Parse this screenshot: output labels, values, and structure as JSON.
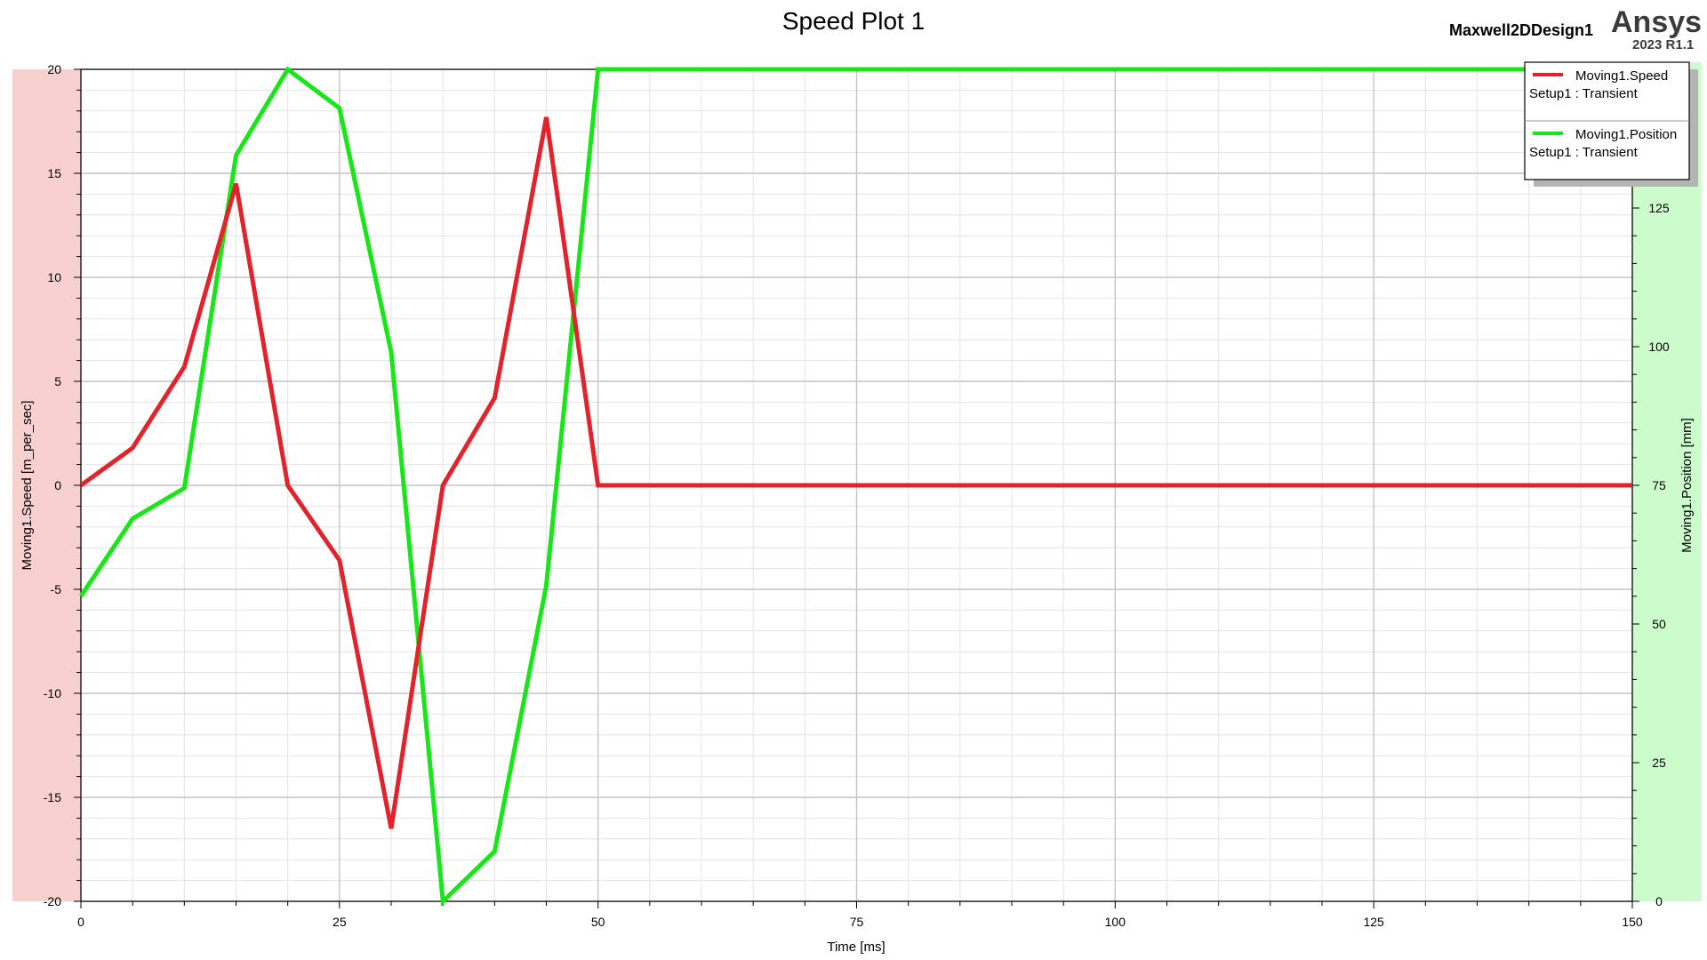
{
  "header": {
    "title": "Speed Plot 1",
    "design": "Maxwell2DDesign1",
    "brand": "Ansys",
    "version": "2023 R1.1"
  },
  "colors": {
    "speed": "#e3232c",
    "position": "#19e619",
    "left_band": "#f8d0d0",
    "right_band": "#ccfccc"
  },
  "chart_data": {
    "type": "line",
    "title": "Speed Plot 1",
    "xlabel": "Time [ms]",
    "ylabel": "Moving1.Speed [m_per_sec]",
    "y2label": "Moving1.Position [mm]",
    "xlim": [
      0,
      150
    ],
    "ylim": [
      -20,
      20
    ],
    "y2lim": [
      0,
      150
    ],
    "x_ticks": [
      "0",
      "25",
      "50",
      "75",
      "100",
      "125",
      "150"
    ],
    "y_ticks": [
      "-20",
      "-15",
      "-10",
      "-5",
      "0",
      "5",
      "10",
      "15",
      "20"
    ],
    "y2_ticks": [
      "0",
      "25",
      "50",
      "75",
      "100",
      "125"
    ],
    "grid": true,
    "legend_position": "top-right",
    "series": [
      {
        "name": "Moving1.Speed",
        "subtitle": "Setup1 : Transient",
        "axis": "left",
        "x": [
          0,
          5,
          10,
          15,
          20,
          25,
          30,
          35,
          40,
          45,
          50,
          150
        ],
        "y": [
          0,
          1.8,
          5.7,
          14.5,
          0,
          -3.6,
          -16.5,
          0,
          4.2,
          17.7,
          0,
          0
        ]
      },
      {
        "name": "Moving1.Position",
        "subtitle": "Setup1 : Transient",
        "axis": "right",
        "x": [
          0,
          5,
          10,
          15,
          20,
          25,
          30,
          35,
          40,
          45,
          50,
          150
        ],
        "y": [
          55,
          69,
          74.5,
          134.5,
          150,
          143,
          99,
          0,
          9,
          57,
          150,
          150
        ]
      }
    ]
  }
}
